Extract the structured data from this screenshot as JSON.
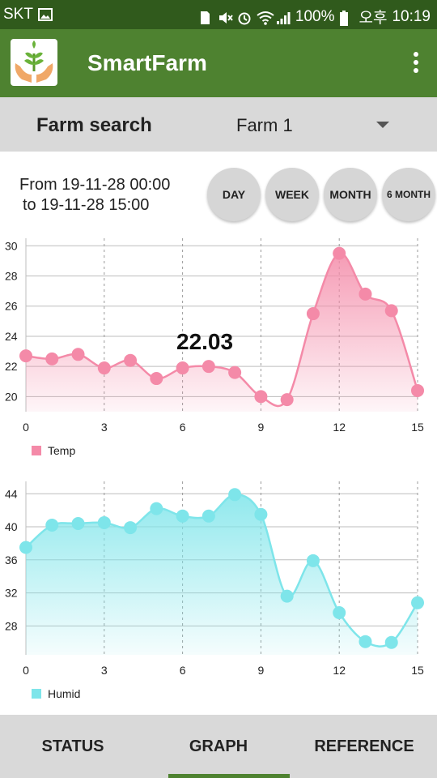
{
  "status_bar": {
    "carrier": "SKT",
    "battery": "100%",
    "ampm": "오후",
    "time": "10:19"
  },
  "app": {
    "title": "SmartFarm",
    "brand_color": "#4e8230"
  },
  "farm_search": {
    "label": "Farm search",
    "selected": "Farm 1"
  },
  "date_range": {
    "from": "From 19-11-28 00:00",
    "to": "to 19-11-28 15:00"
  },
  "periods": [
    "DAY",
    "WEEK",
    "MONTH",
    "6 MONTH"
  ],
  "tabs": [
    "STATUS",
    "GRAPH",
    "REFERENCE"
  ],
  "active_tab": "GRAPH",
  "highlight": {
    "value": "22.03"
  },
  "chart_data": [
    {
      "type": "area",
      "x": [
        0,
        1,
        2,
        3,
        4,
        5,
        6,
        7,
        8,
        9,
        10,
        11,
        12,
        13,
        14,
        15
      ],
      "xticks": [
        0,
        3,
        6,
        9,
        12,
        15
      ],
      "yticks": [
        20,
        22,
        24,
        26,
        28,
        30
      ],
      "ylim": [
        19,
        30.5
      ],
      "series": [
        {
          "name": "Temp",
          "color": "#f48aa8",
          "values": [
            22.7,
            22.5,
            22.8,
            21.9,
            22.4,
            21.2,
            21.9,
            22.0,
            21.6,
            20.0,
            19.8,
            25.5,
            29.5,
            26.8,
            25.7,
            20.4
          ]
        }
      ],
      "legend": "bottom-left"
    },
    {
      "type": "area",
      "x": [
        0,
        1,
        2,
        3,
        4,
        5,
        6,
        7,
        8,
        9,
        10,
        11,
        12,
        13,
        14,
        15
      ],
      "xticks": [
        0,
        3,
        6,
        9,
        12,
        15
      ],
      "yticks": [
        28,
        32,
        36,
        40,
        44
      ],
      "ylim": [
        24.5,
        45.5
      ],
      "series": [
        {
          "name": "Humid",
          "color": "#7ee5ea",
          "values": [
            37.5,
            40.2,
            40.4,
            40.5,
            39.9,
            42.2,
            41.3,
            41.3,
            43.9,
            41.5,
            31.6,
            35.9,
            29.6,
            26.1,
            26.0,
            30.8
          ]
        }
      ],
      "legend": "bottom-left"
    }
  ]
}
